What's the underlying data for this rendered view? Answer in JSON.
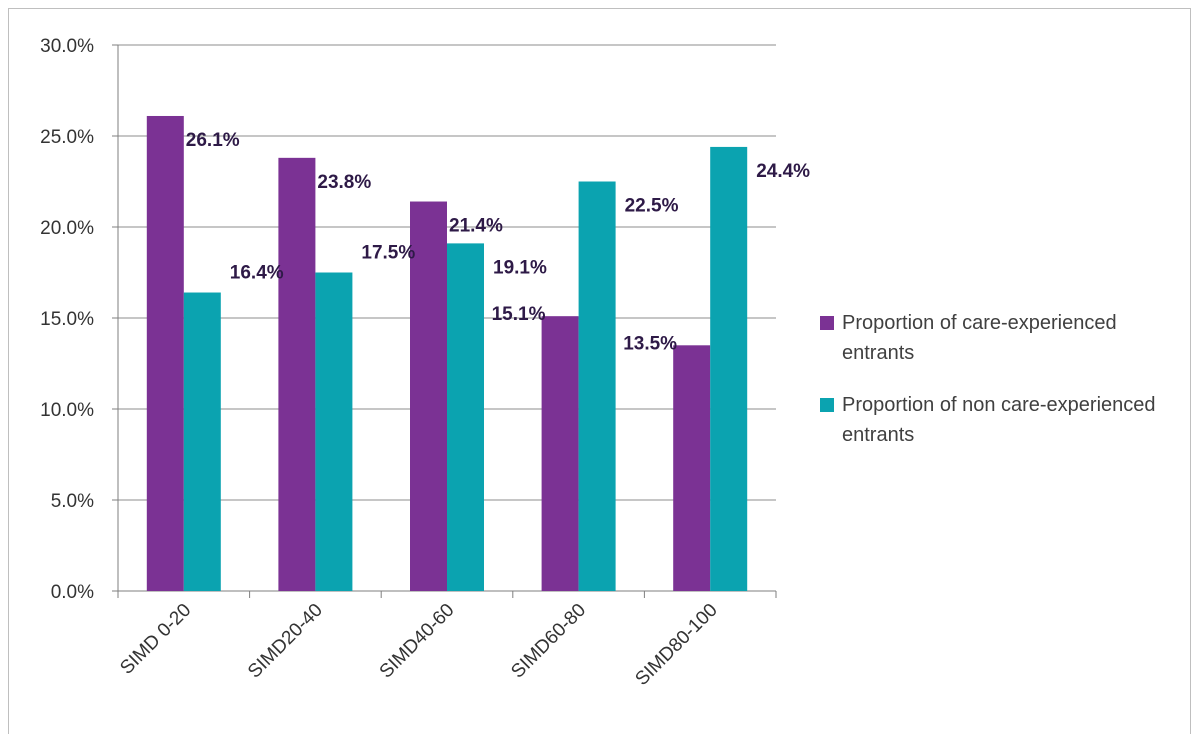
{
  "chart_data": {
    "type": "bar",
    "categories": [
      "SIMD 0-20",
      "SIMD20-40",
      "SIMD40-60",
      "SIMD60-80",
      "SIMD80-100"
    ],
    "series": [
      {
        "name": "Proportion of care-experienced entrants",
        "values": [
          26.1,
          23.8,
          21.4,
          15.1,
          13.5
        ],
        "labels": [
          "26.1%",
          "23.8%",
          "21.4%",
          "15.1%",
          "13.5%"
        ],
        "color": "#7b3294"
      },
      {
        "name": "Proportion of non care-experienced entrants",
        "values": [
          16.4,
          17.5,
          19.1,
          22.5,
          24.4
        ],
        "labels": [
          "16.4%",
          "17.5%",
          "19.1%",
          "22.5%",
          "24.4%"
        ],
        "color": "#0ba3b0"
      }
    ],
    "y_ticks": [
      0,
      5,
      10,
      15,
      20,
      25,
      30
    ],
    "y_tick_labels": [
      "0.0%",
      "5.0%",
      "10.0%",
      "15.0%",
      "20.0%",
      "25.0%",
      "30.0%"
    ],
    "ylim": [
      0,
      30
    ],
    "grid": true,
    "legend_position": "right"
  }
}
